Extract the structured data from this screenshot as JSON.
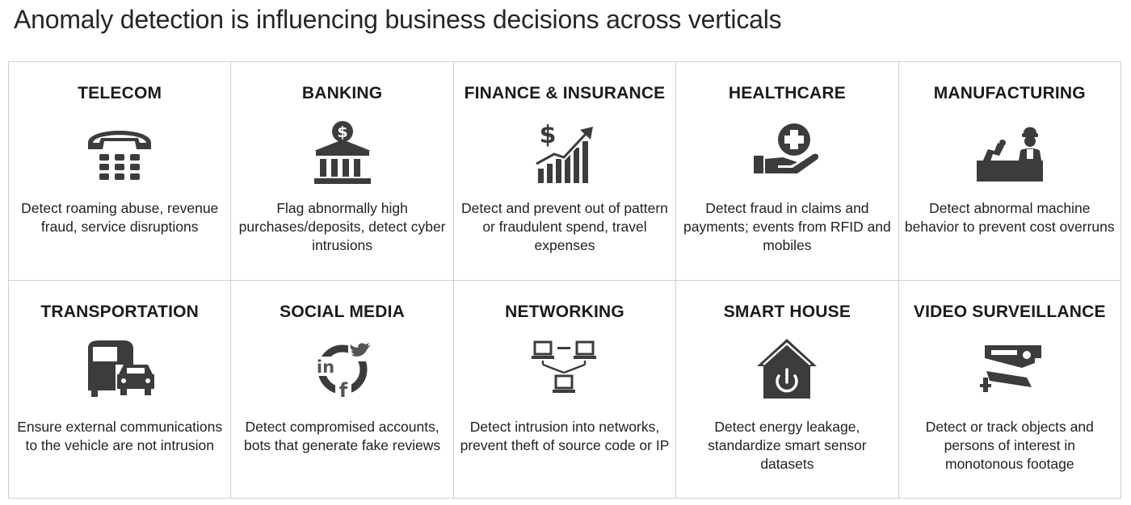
{
  "title": "Anomaly detection is influencing business decisions across verticals",
  "verticals": [
    {
      "name": "TELECOM",
      "icon": "telephone-icon",
      "description": "Detect roaming abuse, revenue fraud, service disruptions"
    },
    {
      "name": "BANKING",
      "icon": "bank-icon",
      "description": "Flag abnormally high purchases/deposits, detect cyber intrusions"
    },
    {
      "name": "FINANCE & INSURANCE",
      "icon": "finance-growth-icon",
      "description": "Detect and prevent out of pattern or fraudulent spend, travel expenses"
    },
    {
      "name": "HEALTHCARE",
      "icon": "hand-medical-cross-icon",
      "description": "Detect fraud in claims and payments; events from RFID and mobiles"
    },
    {
      "name": "MANUFACTURING",
      "icon": "factory-worker-icon",
      "description": "Detect abnormal machine behavior to prevent cost overruns"
    },
    {
      "name": "TRANSPORTATION",
      "icon": "bus-car-icon",
      "description": "Ensure external communications to the vehicle are not intrusion"
    },
    {
      "name": "SOCIAL MEDIA",
      "icon": "social-media-icon",
      "description": "Detect compromised accounts, bots that generate fake reviews"
    },
    {
      "name": "NETWORKING",
      "icon": "network-computers-icon",
      "description": "Detect intrusion into networks, prevent theft of source code or IP"
    },
    {
      "name": "SMART HOUSE",
      "icon": "smart-house-power-icon",
      "description": "Detect energy leakage, standardize smart sensor datasets"
    },
    {
      "name": "VIDEO SURVEILLANCE",
      "icon": "security-camera-icon",
      "description": "Detect or track objects and persons of interest in monotonous footage"
    }
  ]
}
